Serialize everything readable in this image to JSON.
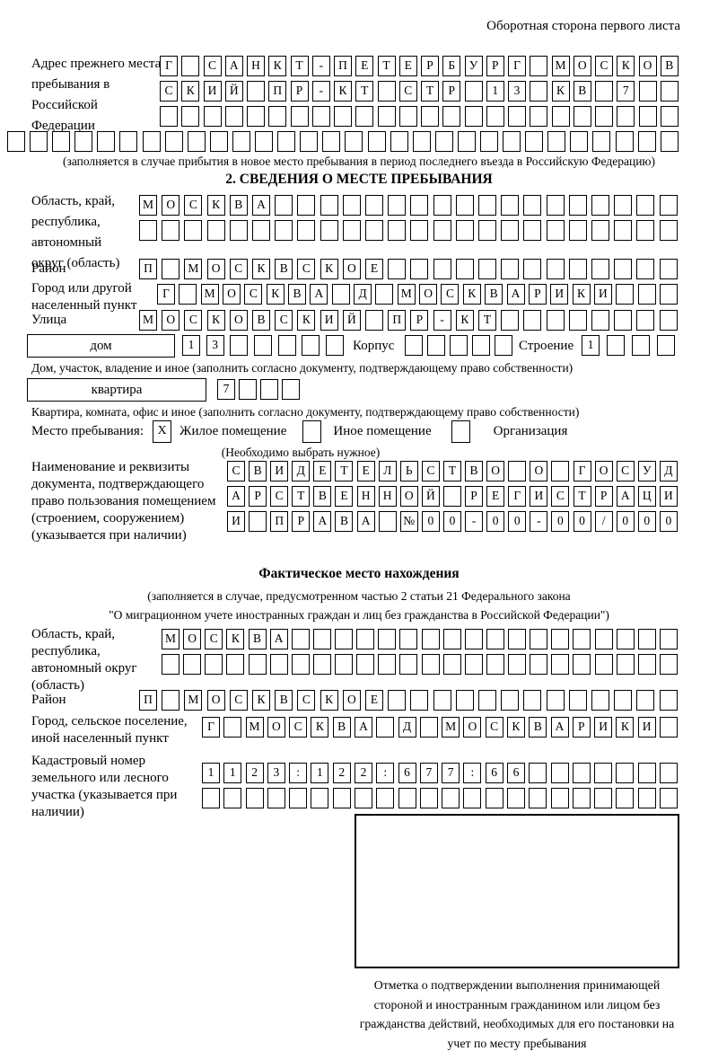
{
  "header": {
    "note": "Оборотная сторона первого листа"
  },
  "prev_address": {
    "label": "Адрес прежнего места пребывания в Российской Федерации",
    "row1": {
      "len": 24,
      "value": "Г САНКТ-ПЕТЕРБУРГ МОСКОВ"
    },
    "row2": {
      "len": 24,
      "value": "СКИЙ ПР-КТ СТР 13 КВ 7"
    },
    "row3": {
      "len": 24,
      "value": ""
    },
    "row4": {
      "len": 30,
      "value": ""
    },
    "caption": "(заполняется в случае прибытия в новое место пребывания в период последнего въезда в Российскую Федерацию)"
  },
  "section2": {
    "title": "2. СВЕДЕНИЯ О МЕСТЕ ПРЕБЫВАНИЯ",
    "oblast": {
      "label": "Область, край, республика, автономный округ (область)",
      "row1": {
        "len": 24,
        "value": "МОСКВА"
      },
      "row2": {
        "len": 24,
        "value": ""
      }
    },
    "raion": {
      "label": "Район",
      "row": {
        "len": 24,
        "value": "П МОСКВСКОЕ"
      }
    },
    "gorod": {
      "label": "Город или другой населенный пункт",
      "row": {
        "len": 24,
        "value": "Г МОСКВА Д МОСКВАРИКИ"
      }
    },
    "ulitsa": {
      "label": "Улица",
      "row": {
        "len": 24,
        "value": "МОСКОВСКИЙ ПР-КТ"
      }
    },
    "dom": {
      "box_label": "дом",
      "row": {
        "len": 7,
        "value": "13"
      },
      "korpus_label": "Корпус",
      "korpus_row": {
        "len": 5,
        "value": ""
      },
      "stroenie_label": "Строение",
      "stroenie_row": {
        "len": 4,
        "value": "1"
      },
      "caption": "Дом, участок, владение и иное (заполнить согласно документу, подтверждающему право собственности)"
    },
    "kvartira": {
      "box_label": "квартира",
      "row": {
        "len": 4,
        "value": "7"
      },
      "caption": "Квартира, комната, офис и иное (заполнить согласно документу, подтверждающему право собственности)"
    },
    "place_type": {
      "label": "Место пребывания:",
      "options": [
        {
          "mark": "X",
          "label": "Жилое помещение"
        },
        {
          "mark": "",
          "label": "Иное помещение"
        },
        {
          "mark": "",
          "label": "Организация"
        }
      ],
      "caption": "(Необходимо выбрать нужное)"
    },
    "document": {
      "label": "Наименование и реквизиты документа, подтверждающего право пользования помещением (строением, сооружением) (указывается при наличии)",
      "row1": {
        "len": 21,
        "value": "СВИДЕТЕЛЬСТВО О ГОСУД"
      },
      "row2": {
        "len": 21,
        "value": "АРСТВЕННОЙ РЕГИСТРАЦИ"
      },
      "row3": {
        "len": 21,
        "value": "И ПРАВА №00-00-00/000"
      }
    }
  },
  "fact": {
    "title": "Фактическое место нахождения",
    "note1": "(заполняется в случае, предусмотренном частью 2 статьи 21 Федерального закона",
    "note2": "\"О миграционном учете иностранных граждан и лиц без гражданства в Российской Федерации\")",
    "oblast": {
      "label": "Область, край, республика, автономный округ (область)",
      "row1": {
        "len": 24,
        "value": "МОСКВА"
      },
      "row2": {
        "len": 24,
        "value": ""
      }
    },
    "raion": {
      "label": "Район",
      "row": {
        "len": 24,
        "value": "П МОСКВСКОЕ"
      }
    },
    "gorod": {
      "label": "Город, сельское поселение, иной населенный пункт",
      "row": {
        "len": 22,
        "value": "Г МОСКВА Д МОСКВАРИКИ"
      }
    },
    "kadastr": {
      "label": "Кадастровый номер земельного или лесного участка (указывается при наличии)",
      "row1": {
        "len": 22,
        "value": "1123:122:677:66"
      },
      "row2": {
        "len": 22,
        "value": ""
      }
    },
    "stamp_caption": "Отметка о подтверждении выполнения принимающей стороной и иностранным гражданином или лицом без гражданства действий, необходимых для его постановки на учет по месту пребывания"
  }
}
